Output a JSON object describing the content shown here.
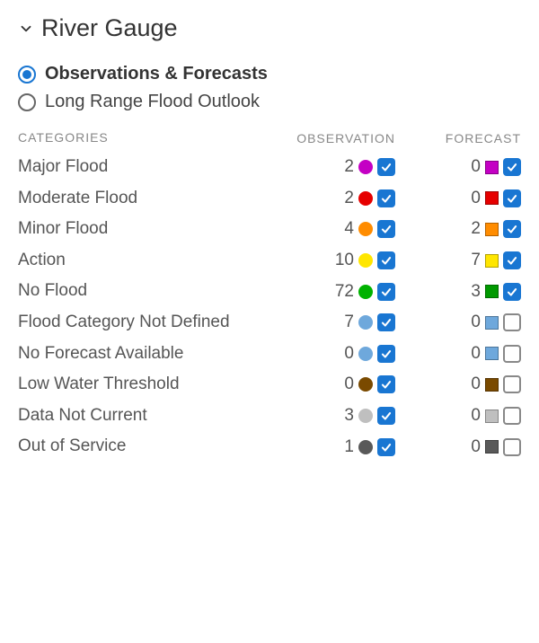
{
  "panel": {
    "title": "River Gauge"
  },
  "radios": {
    "obs_forecast": {
      "label": "Observations & Forecasts",
      "selected": true
    },
    "long_range": {
      "label": "Long Range Flood Outlook",
      "selected": false
    }
  },
  "headers": {
    "categories": "CATEGORIES",
    "observation": "OBSERVATION",
    "forecast": "FORECAST"
  },
  "categories": [
    {
      "name": "Major Flood",
      "obs_count": 2,
      "obs_color": "#c400c4",
      "obs_checked": true,
      "fc_count": 0,
      "fc_color": "#c400c4",
      "fc_checked": true
    },
    {
      "name": "Moderate Flood",
      "obs_count": 2,
      "obs_color": "#e60000",
      "obs_checked": true,
      "fc_count": 0,
      "fc_color": "#e60000",
      "fc_checked": true
    },
    {
      "name": "Minor Flood",
      "obs_count": 4,
      "obs_color": "#ff8c00",
      "obs_checked": true,
      "fc_count": 2,
      "fc_color": "#ff8c00",
      "fc_checked": true
    },
    {
      "name": "Action",
      "obs_count": 10,
      "obs_color": "#ffe600",
      "obs_checked": true,
      "fc_count": 7,
      "fc_color": "#ffe600",
      "fc_checked": true
    },
    {
      "name": "No Flood",
      "obs_count": 72,
      "obs_color": "#00b200",
      "obs_checked": true,
      "fc_count": 3,
      "fc_color": "#009900",
      "fc_checked": true
    },
    {
      "name": "Flood Category Not Defined",
      "obs_count": 7,
      "obs_color": "#6ea8dc",
      "obs_checked": true,
      "fc_count": 0,
      "fc_color": "#6ea8dc",
      "fc_checked": false
    },
    {
      "name": "No Forecast Available",
      "obs_count": 0,
      "obs_color": "#6ea8dc",
      "obs_checked": true,
      "fc_count": 0,
      "fc_color": "#6ea8dc",
      "fc_checked": false
    },
    {
      "name": "Low Water Threshold",
      "obs_count": 0,
      "obs_color": "#7a4a00",
      "obs_checked": true,
      "fc_count": 0,
      "fc_color": "#7a4a00",
      "fc_checked": false
    },
    {
      "name": "Data Not Current",
      "obs_count": 3,
      "obs_color": "#bfbfbf",
      "obs_checked": true,
      "fc_count": 0,
      "fc_color": "#bfbfbf",
      "fc_checked": false
    },
    {
      "name": "Out of Service",
      "obs_count": 1,
      "obs_color": "#595959",
      "obs_checked": true,
      "fc_count": 0,
      "fc_color": "#595959",
      "fc_checked": false
    }
  ],
  "style": {
    "checkbox_on_bg": "#1976d2",
    "radio_selected_color": "#1976d2"
  }
}
